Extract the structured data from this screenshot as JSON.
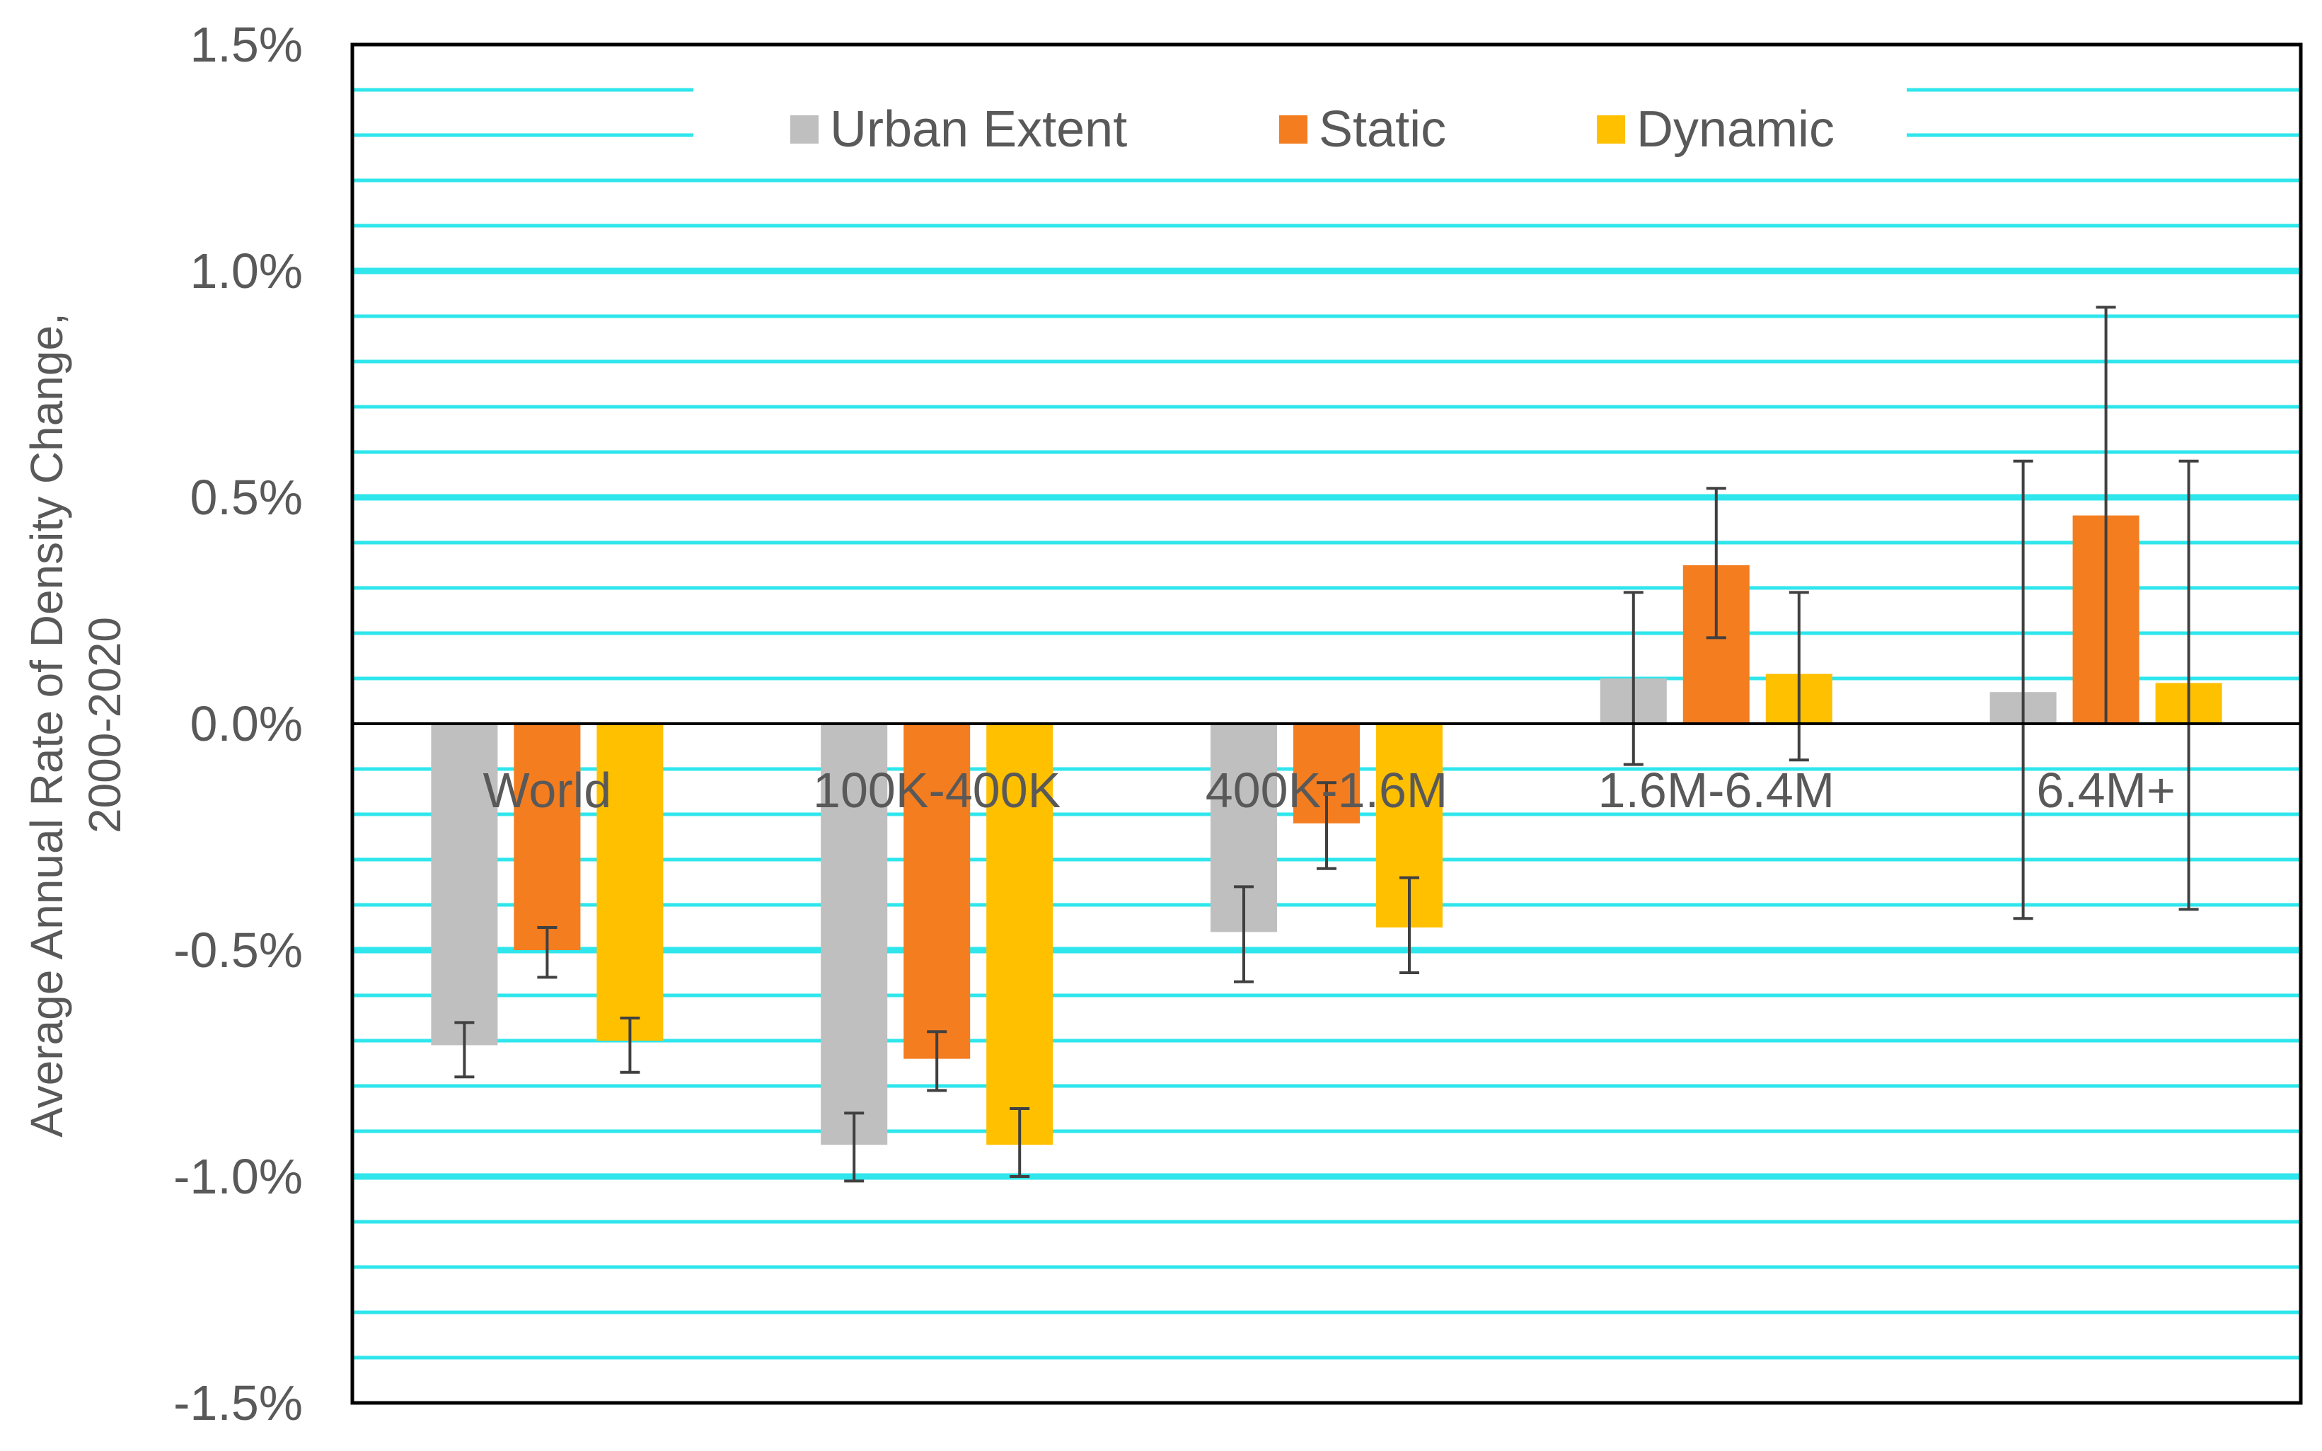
{
  "chart_data": {
    "type": "bar",
    "title": "",
    "xlabel": "",
    "ylabel": "Average Annual Rate of Density Change, 2000-2020",
    "ylabel_lines": [
      "Average Annual Rate of Density Change,",
      "2000-2020"
    ],
    "ylim": [
      -0.015,
      0.015
    ],
    "yticks": [
      {
        "value": 0.015,
        "label": "1.5%"
      },
      {
        "value": 0.01,
        "label": "1.0%"
      },
      {
        "value": 0.005,
        "label": "0.5%"
      },
      {
        "value": 0.0,
        "label": "0.0%"
      },
      {
        "value": -0.005,
        "label": "-0.5%"
      },
      {
        "value": -0.01,
        "label": "-1.0%"
      },
      {
        "value": -0.015,
        "label": "-1.5%"
      }
    ],
    "grid": true,
    "minor_grid_step": 0.001,
    "legend_position": "top-center",
    "categories": [
      "World",
      "100K-400K",
      "400K-1.6M",
      "1.6M-6.4M",
      "6.4M+"
    ],
    "series": [
      {
        "name": "Urban Extent",
        "color": "#bfbfbf",
        "values": [
          -0.0071,
          -0.0093,
          -0.0046,
          0.001,
          0.0007
        ],
        "error_low": [
          -0.0078,
          -0.0101,
          -0.0057,
          -0.0009,
          -0.0043
        ],
        "error_high": [
          -0.0066,
          -0.0086,
          -0.0036,
          0.0029,
          0.0058
        ]
      },
      {
        "name": "Static",
        "color": "#f47d20",
        "values": [
          -0.005,
          -0.0074,
          -0.0022,
          0.0035,
          0.0046
        ],
        "error_low": [
          -0.0056,
          -0.0081,
          -0.0032,
          0.0019,
          0.0
        ],
        "error_high": [
          -0.0045,
          -0.0068,
          -0.0013,
          0.0052,
          0.0092
        ]
      },
      {
        "name": "Dynamic",
        "color": "#ffc000",
        "values": [
          -0.007,
          -0.0093,
          -0.0045,
          0.0011,
          0.0009
        ],
        "error_low": [
          -0.0077,
          -0.01,
          -0.0055,
          -0.0008,
          -0.0041
        ],
        "error_high": [
          -0.0065,
          -0.0085,
          -0.0034,
          0.0029,
          0.0058
        ]
      }
    ],
    "colors": {
      "grid": "#2ee6ec",
      "axis": "#000000",
      "text": "#595959",
      "errorbar": "#404040"
    }
  }
}
